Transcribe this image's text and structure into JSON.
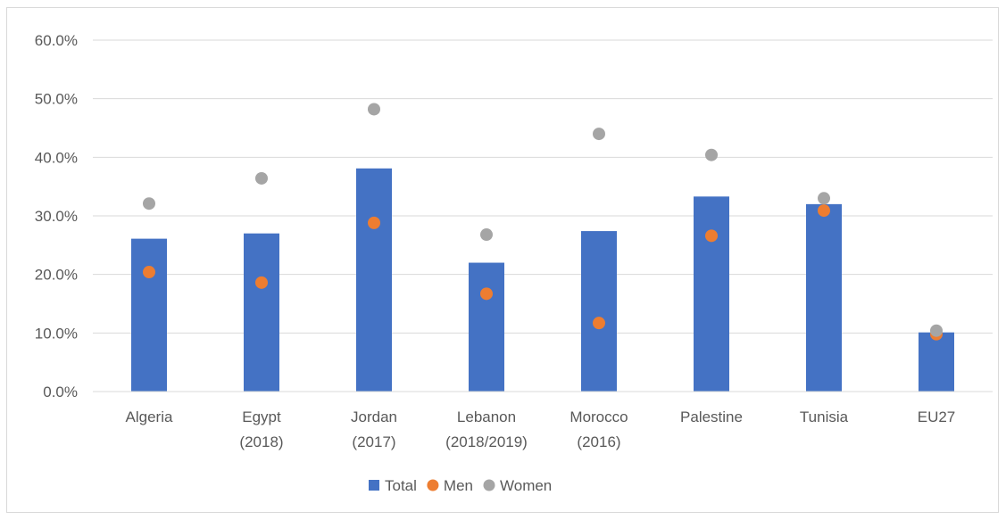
{
  "chart_data": {
    "type": "bar",
    "categories": [
      [
        "Algeria"
      ],
      [
        "Egypt",
        "(2018)"
      ],
      [
        "Jordan",
        "(2017)"
      ],
      [
        "Lebanon",
        "(2018/2019)"
      ],
      [
        "Morocco",
        "(2016)"
      ],
      [
        "Palestine"
      ],
      [
        "Tunisia"
      ],
      [
        "EU27"
      ]
    ],
    "series": [
      {
        "name": "Total",
        "kind": "bar",
        "color": "#4472c4",
        "values": [
          26.1,
          27.0,
          38.1,
          22.0,
          27.4,
          33.3,
          32.0,
          10.1
        ]
      },
      {
        "name": "Men",
        "kind": "marker",
        "color": "#ed7d31",
        "values": [
          20.4,
          18.6,
          28.8,
          16.7,
          11.7,
          26.6,
          30.9,
          9.8
        ]
      },
      {
        "name": "Women",
        "kind": "marker",
        "color": "#a5a5a5",
        "values": [
          32.1,
          36.4,
          48.2,
          26.8,
          44.0,
          40.4,
          33.0,
          10.4
        ]
      }
    ],
    "yticks": [
      "0.0%",
      "10.0%",
      "20.0%",
      "30.0%",
      "40.0%",
      "50.0%",
      "60.0%"
    ],
    "ylim": [
      0,
      60
    ],
    "grid": true,
    "legend_position": "bottom",
    "title": "",
    "xlabel": "",
    "ylabel": ""
  }
}
